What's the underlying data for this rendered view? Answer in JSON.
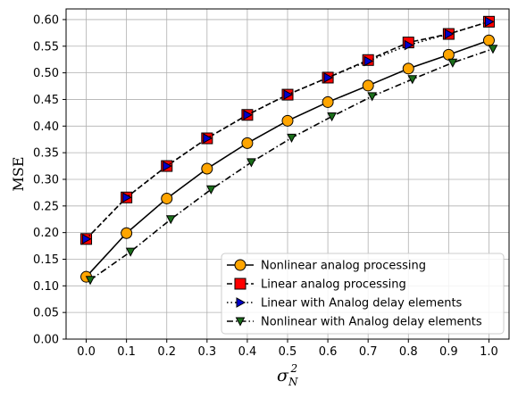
{
  "chart_data": {
    "type": "line",
    "title": "",
    "xlabel": "σ_N^2",
    "xlabel_main": "σ",
    "xlabel_sub": "N",
    "xlabel_sup": "2",
    "ylabel": "MSE",
    "xlim": [
      -0.05,
      1.05
    ],
    "ylim": [
      0.0,
      0.62
    ],
    "xticks": [
      0.0,
      0.1,
      0.2,
      0.3,
      0.4,
      0.5,
      0.6,
      0.7,
      0.8,
      0.9,
      1.0
    ],
    "xtick_labels": [
      "0.0",
      "0.1",
      "0.2",
      "0.3",
      "0.4",
      "0.5",
      "0.6",
      "0.7",
      "0.8",
      "0.9",
      "1.0"
    ],
    "yticks": [
      0.0,
      0.05,
      0.1,
      0.15,
      0.2,
      0.25,
      0.3,
      0.35,
      0.4,
      0.45,
      0.5,
      0.55,
      0.6
    ],
    "ytick_labels": [
      "0.00",
      "0.05",
      "0.10",
      "0.15",
      "0.20",
      "0.25",
      "0.30",
      "0.35",
      "0.40",
      "0.45",
      "0.50",
      "0.55",
      "0.60"
    ],
    "grid": true,
    "legend_position": "bottom-right",
    "series": [
      {
        "name": "Nonlinear analog processing",
        "x": [
          0.0,
          0.1,
          0.2,
          0.3,
          0.4,
          0.5,
          0.6,
          0.7,
          0.8,
          0.9,
          1.0
        ],
        "values": [
          0.117,
          0.199,
          0.264,
          0.32,
          0.368,
          0.41,
          0.445,
          0.476,
          0.508,
          0.534,
          0.561
        ],
        "line_color": "#000000",
        "dash": "solid",
        "marker": "circle",
        "marker_color": "#FFA500"
      },
      {
        "name": "Linear analog processing",
        "x": [
          0.0,
          0.1,
          0.2,
          0.3,
          0.4,
          0.5,
          0.6,
          0.7,
          0.8,
          0.9,
          1.0
        ],
        "values": [
          0.188,
          0.266,
          0.325,
          0.377,
          0.421,
          0.459,
          0.491,
          0.524,
          0.557,
          0.573,
          0.596
        ],
        "line_color": "#000000",
        "dash": "dashed",
        "marker": "square",
        "marker_color": "#FF0000"
      },
      {
        "name": "Linear with Analog delay elements",
        "x": [
          0.0,
          0.1,
          0.2,
          0.3,
          0.4,
          0.5,
          0.6,
          0.7,
          0.8,
          0.9,
          1.0
        ],
        "values": [
          0.188,
          0.266,
          0.325,
          0.377,
          0.421,
          0.459,
          0.491,
          0.522,
          0.552,
          0.573,
          0.596
        ],
        "line_color": "#000000",
        "dash": "dotted",
        "marker": "triangle-right",
        "marker_color": "#0000CC"
      },
      {
        "name": "Nonlinear with Analog delay elements",
        "x": [
          0.01,
          0.11,
          0.21,
          0.31,
          0.41,
          0.51,
          0.61,
          0.71,
          0.81,
          0.91,
          1.01
        ],
        "values": [
          0.111,
          0.164,
          0.225,
          0.281,
          0.332,
          0.378,
          0.418,
          0.456,
          0.488,
          0.519,
          0.545
        ],
        "line_color": "#000000",
        "dash": "dashdot",
        "marker": "triangle-down",
        "marker_color": "#1A6E1A"
      }
    ]
  }
}
